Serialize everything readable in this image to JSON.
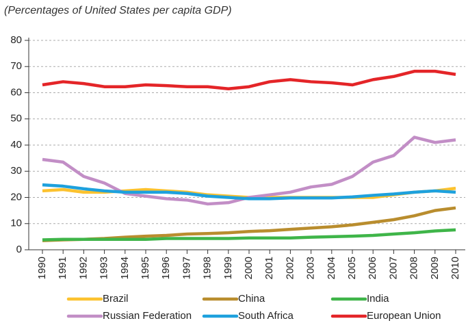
{
  "chart_data": {
    "type": "line",
    "subtitle": "(Percentages of United States per capita GDP)",
    "x": [
      1990,
      1991,
      1992,
      1993,
      1994,
      1995,
      1996,
      1997,
      1998,
      1999,
      2000,
      2001,
      2002,
      2003,
      2004,
      2005,
      2006,
      2007,
      2008,
      2009,
      2010
    ],
    "xlim": [
      1990,
      2010
    ],
    "xticks": [
      1990,
      1991,
      1992,
      1993,
      1994,
      1995,
      1996,
      1997,
      1998,
      1999,
      2000,
      2001,
      2002,
      2003,
      2004,
      2005,
      2006,
      2007,
      2008,
      2009,
      2010
    ],
    "ylim": [
      0,
      80
    ],
    "yticks": [
      0,
      10,
      20,
      30,
      40,
      50,
      60,
      70,
      80
    ],
    "grid": true,
    "legend": "bottom",
    "series": [
      {
        "name": "Brazil",
        "color": "#fcc22f",
        "values": [
          22.5,
          23,
          22,
          22,
          22.5,
          23,
          22.5,
          22,
          21,
          20.5,
          20,
          20,
          20,
          20,
          20,
          20,
          20,
          21,
          22,
          22.5,
          23.5
        ]
      },
      {
        "name": "China",
        "color": "#b98d2e",
        "values": [
          3.5,
          3.8,
          4,
          4.3,
          4.8,
          5.2,
          5.5,
          6,
          6.2,
          6.5,
          7,
          7.3,
          7.8,
          8.3,
          8.8,
          9.5,
          10.5,
          11.5,
          13,
          15,
          16
        ]
      },
      {
        "name": "India",
        "color": "#3fb549",
        "values": [
          3.8,
          4,
          4,
          4,
          4,
          4,
          4.3,
          4.3,
          4.3,
          4.3,
          4.5,
          4.5,
          4.5,
          4.8,
          5,
          5.2,
          5.5,
          6,
          6.5,
          7.2,
          7.6
        ]
      },
      {
        "name": "Russian Federation",
        "color": "#c28ec6",
        "values": [
          34.5,
          33.5,
          28,
          25.5,
          21.5,
          20.5,
          19.5,
          19,
          17.5,
          18,
          20,
          21,
          22,
          24,
          25,
          28,
          33.5,
          36,
          43,
          41,
          42
        ]
      },
      {
        "name": "South Africa",
        "color": "#1ea1dd",
        "values": [
          24.8,
          24.3,
          23.3,
          22.5,
          22,
          22,
          22,
          21.5,
          20.5,
          20,
          19.5,
          19.5,
          19.8,
          19.8,
          19.8,
          20.2,
          20.8,
          21.3,
          22,
          22.5,
          22
        ]
      },
      {
        "name": "European Union",
        "color": "#e42528",
        "values": [
          63,
          64.2,
          63.5,
          62.3,
          62.3,
          63,
          62.7,
          62.3,
          62.3,
          61.5,
          62.3,
          64.2,
          65,
          64.2,
          63.8,
          63,
          65,
          66.2,
          68.2,
          68.2,
          67
        ]
      }
    ]
  }
}
